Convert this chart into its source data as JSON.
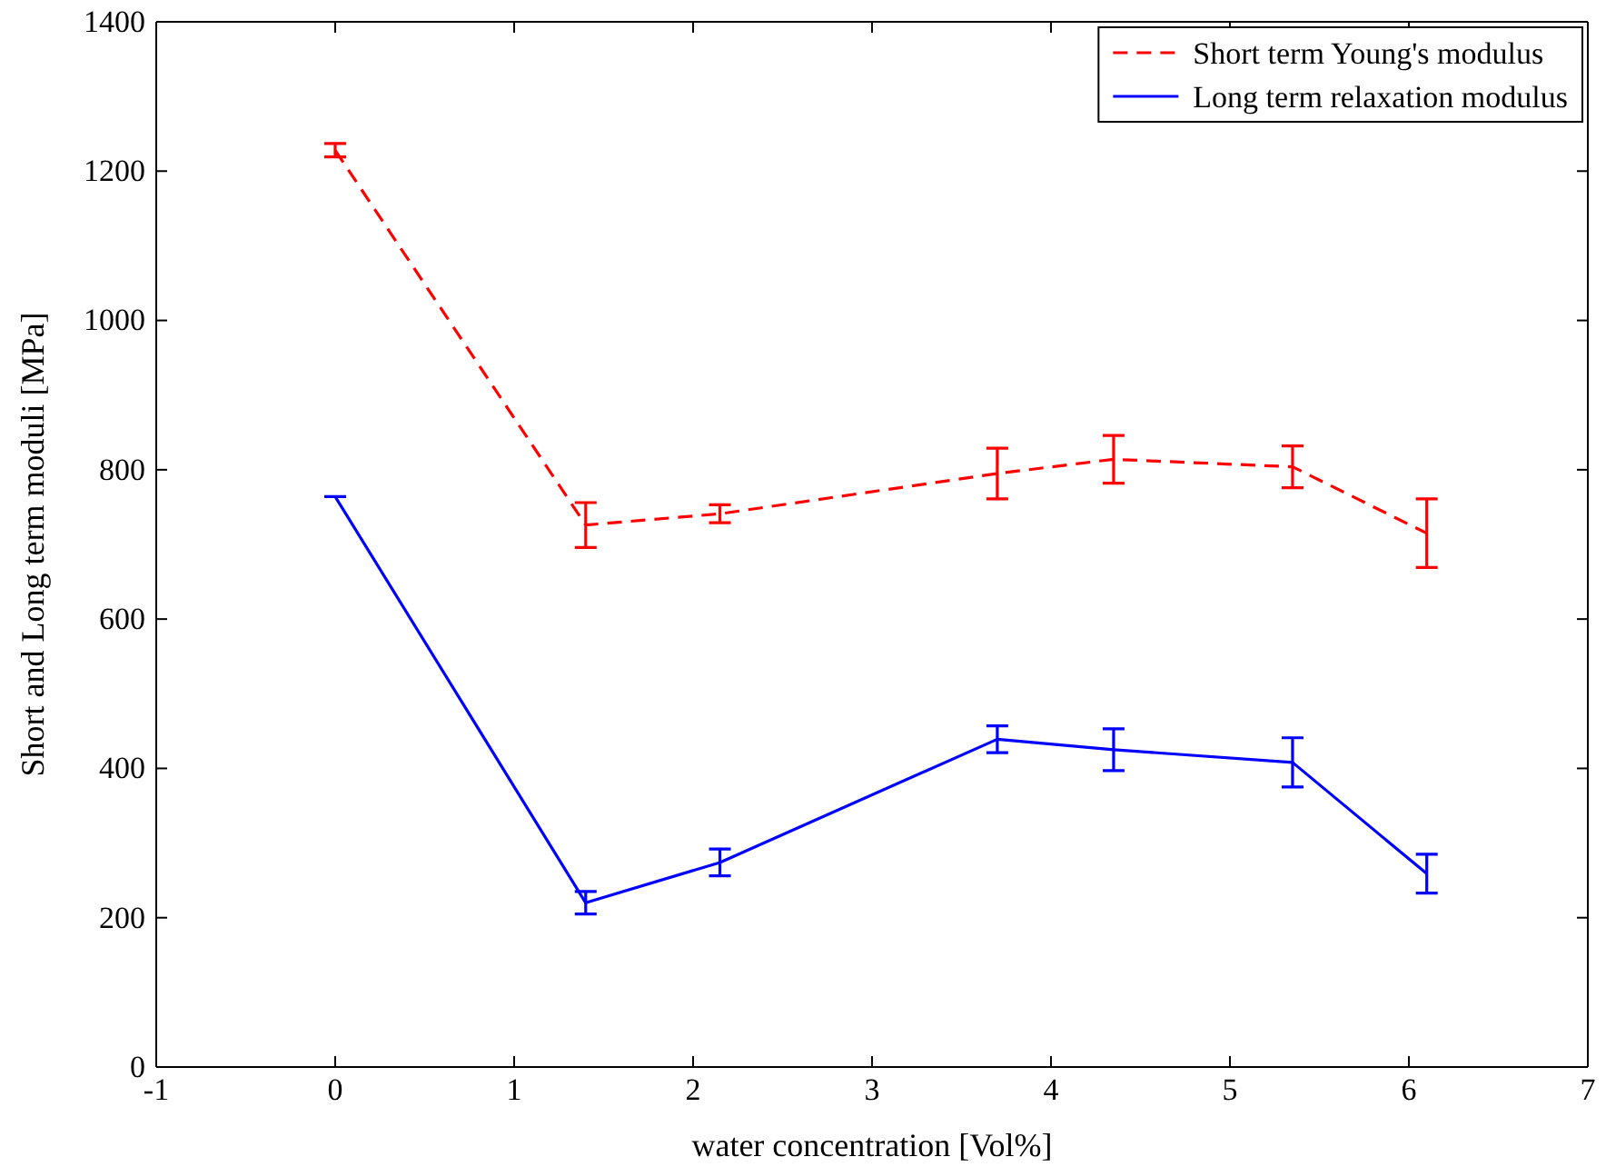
{
  "chart_data": {
    "type": "line",
    "xlabel": "water concentration [Vol%]",
    "ylabel": "Short and Long term moduli [MPa]",
    "x": [
      0,
      1.4,
      2.15,
      3.7,
      4.35,
      5.35,
      6.1
    ],
    "series": [
      {
        "name": "Short term Young's modulus",
        "color": "#ff0000",
        "line_style": "dashed",
        "values": [
          1228,
          726,
          741,
          795,
          814,
          804,
          715
        ],
        "errors": [
          9,
          30,
          12,
          34,
          32,
          28,
          46
        ]
      },
      {
        "name": "Long term relaxation modulus",
        "color": "#0000ff",
        "line_style": "solid",
        "values": [
          764,
          220,
          274,
          439,
          425,
          408,
          259
        ],
        "errors": [
          0,
          15,
          18,
          18,
          28,
          33,
          26
        ]
      }
    ],
    "xlim": [
      -1,
      7
    ],
    "xticks": [
      -1,
      0,
      1,
      2,
      3,
      4,
      5,
      6,
      7
    ],
    "ylim": [
      0,
      1400
    ],
    "yticks": [
      0,
      200,
      400,
      600,
      800,
      1000,
      1200,
      1400
    ],
    "grid": false,
    "legend": "top right",
    "marker": "none"
  }
}
